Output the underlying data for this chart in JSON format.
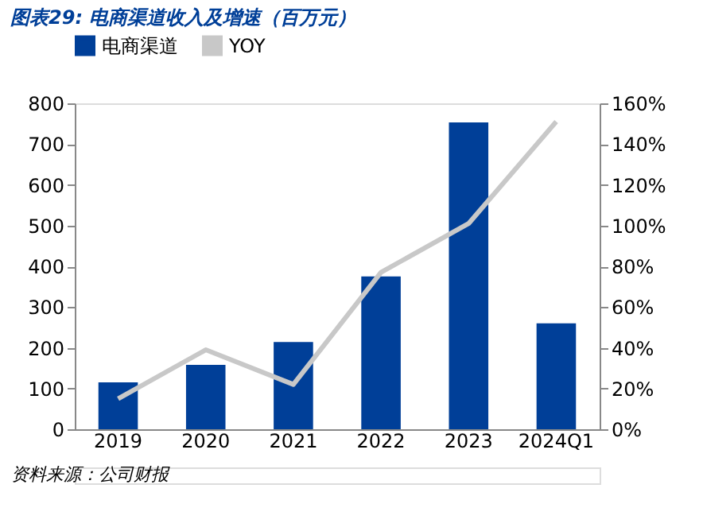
{
  "chart_data": {
    "type": "bar",
    "title": "图表29: 电商渠道收入及增速（百万元）",
    "annotations": [
      "资料来源：公司财报"
    ],
    "categories": [
      "2019",
      "2020",
      "2021",
      "2022",
      "2023",
      "2024Q1"
    ],
    "series": [
      {
        "name": "电商渠道",
        "color": "#003f98",
        "values": [
          115,
          158,
          214,
          375,
          753,
          260
        ]
      },
      {
        "name": "YOY",
        "type": "line",
        "axis": "y2",
        "color": "#c8c8c8",
        "values": [
          15,
          39,
          22,
          77,
          101,
          151
        ]
      }
    ],
    "ylim": [
      0,
      800
    ],
    "yticks": [
      0,
      100,
      200,
      300,
      400,
      500,
      600,
      700,
      800
    ],
    "y2lim": [
      0,
      160
    ],
    "y2ticks": [
      {
        "value": 0,
        "label": "0%"
      },
      {
        "value": 20,
        "label": "20%"
      },
      {
        "value": 40,
        "label": "40%"
      },
      {
        "value": 60,
        "label": "60%"
      },
      {
        "value": 80,
        "label": "80%"
      },
      {
        "value": 100,
        "label": "100%"
      },
      {
        "value": 120,
        "label": "120%"
      },
      {
        "value": 140,
        "label": "140%"
      },
      {
        "value": 160,
        "label": "160%"
      }
    ],
    "legend": "top",
    "grid": false
  }
}
